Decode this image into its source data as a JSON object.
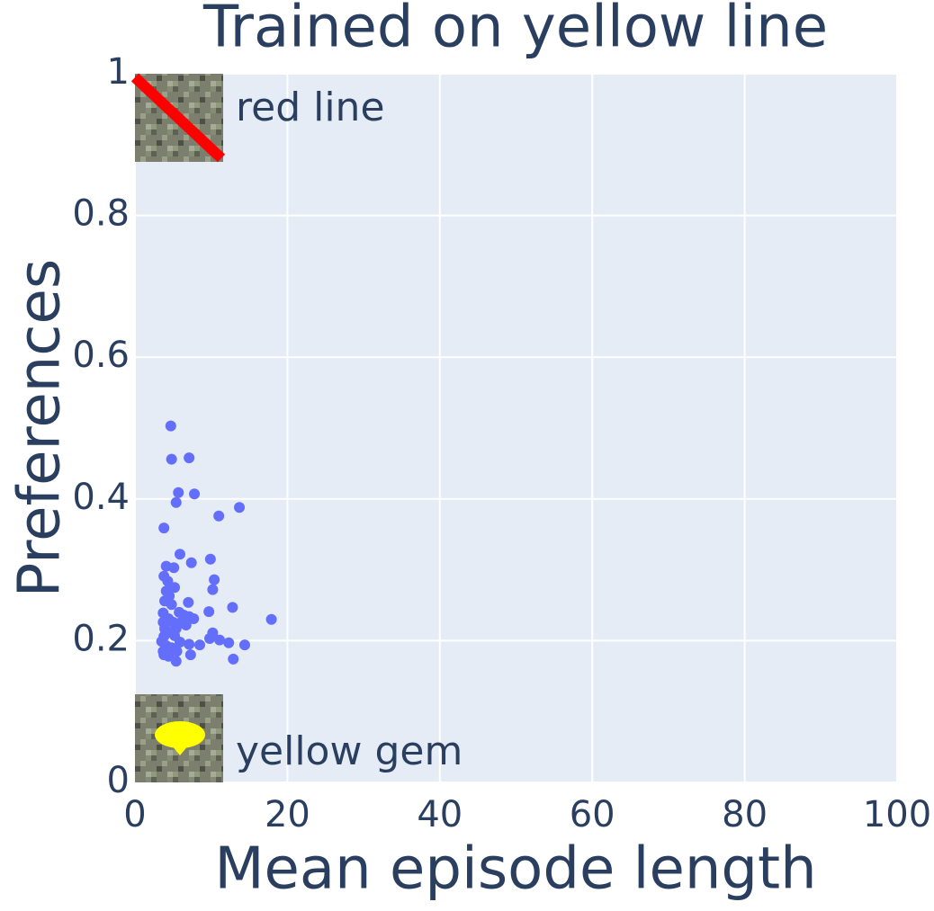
{
  "chart_data": {
    "type": "scatter",
    "title": "Trained on yellow line",
    "x_label": "Mean episode length",
    "y_label": "Preferences",
    "annotations": [
      "red line",
      "yellow gem"
    ],
    "xlim": [
      0,
      100
    ],
    "xticks": [
      0,
      20,
      40,
      60,
      80,
      100
    ],
    "ylim": [
      0,
      1
    ],
    "yticks": [
      0,
      0.2,
      0.4,
      0.6,
      0.8,
      1
    ],
    "grid": true,
    "color": "#636efa",
    "x": [
      4.7,
      4.8,
      7.1,
      5.7,
      7.8,
      5.4,
      11.0,
      13.7,
      3.8,
      5.9,
      9.9,
      7.4,
      4.1,
      5.1,
      3.8,
      10.4,
      4.3,
      5.2,
      10.2,
      4.1,
      4.5,
      3.9,
      7.0,
      4.8,
      12.8,
      9.7,
      3.7,
      5.8,
      6.4,
      7.1,
      4.4,
      17.9,
      7.7,
      3.7,
      5.0,
      5.9,
      6.7,
      3.9,
      5.4,
      4.5,
      10.2,
      3.8,
      5.2,
      9.8,
      11.1,
      3.5,
      5.9,
      7.1,
      8.5,
      12.3,
      14.4,
      4.1,
      4.8,
      3.7,
      5.5,
      7.3,
      4.4,
      3.8,
      5.4,
      12.9
    ],
    "values": [
      0.503,
      0.456,
      0.458,
      0.409,
      0.407,
      0.395,
      0.376,
      0.388,
      0.359,
      0.322,
      0.315,
      0.31,
      0.305,
      0.303,
      0.291,
      0.286,
      0.284,
      0.275,
      0.272,
      0.27,
      0.263,
      0.256,
      0.254,
      0.251,
      0.247,
      0.241,
      0.239,
      0.24,
      0.236,
      0.234,
      0.231,
      0.23,
      0.231,
      0.226,
      0.226,
      0.225,
      0.222,
      0.217,
      0.217,
      0.212,
      0.211,
      0.206,
      0.207,
      0.203,
      0.201,
      0.199,
      0.198,
      0.195,
      0.194,
      0.197,
      0.194,
      0.193,
      0.19,
      0.185,
      0.185,
      0.18,
      0.178,
      0.18,
      0.171,
      0.174
    ]
  }
}
